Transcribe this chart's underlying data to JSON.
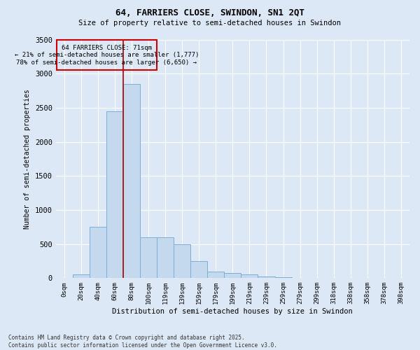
{
  "title_line1": "64, FARRIERS CLOSE, SWINDON, SN1 2QT",
  "title_line2": "Size of property relative to semi-detached houses in Swindon",
  "xlabel": "Distribution of semi-detached houses by size in Swindon",
  "ylabel": "Number of semi-detached properties",
  "bin_labels": [
    "0sqm",
    "20sqm",
    "40sqm",
    "60sqm",
    "80sqm",
    "100sqm",
    "119sqm",
    "139sqm",
    "159sqm",
    "179sqm",
    "199sqm",
    "219sqm",
    "239sqm",
    "259sqm",
    "279sqm",
    "299sqm",
    "318sqm",
    "338sqm",
    "358sqm",
    "378sqm",
    "398sqm"
  ],
  "bar_values": [
    0,
    50,
    750,
    2450,
    2850,
    600,
    600,
    500,
    250,
    100,
    80,
    50,
    20,
    10,
    5,
    2,
    1,
    0,
    0,
    0,
    0
  ],
  "bar_color": "#c5d9ee",
  "bar_edge_color": "#7bafd4",
  "subject_line_color": "#aa0000",
  "annotation_title": "64 FARRIERS CLOSE: 71sqm",
  "annotation_line2": "← 21% of semi-detached houses are smaller (1,777)",
  "annotation_line3": "78% of semi-detached houses are larger (6,650) →",
  "annotation_box_color": "#cc0000",
  "ylim": [
    0,
    3500
  ],
  "yticks": [
    0,
    500,
    1000,
    1500,
    2000,
    2500,
    3000,
    3500
  ],
  "footer_line1": "Contains HM Land Registry data © Crown copyright and database right 2025.",
  "footer_line2": "Contains public sector information licensed under the Open Government Licence v3.0.",
  "bg_color": "#dce8f5",
  "plot_bg_color": "#dce8f5",
  "grid_color": "#ffffff"
}
